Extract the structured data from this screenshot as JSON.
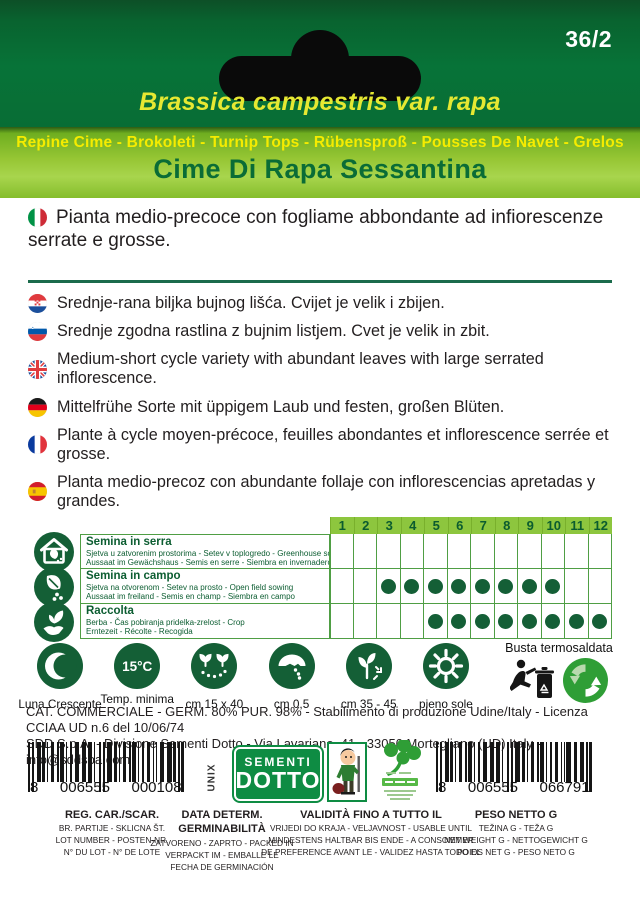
{
  "header": {
    "code": "36/2",
    "botanical_name": "Brassica campestris var. rapa",
    "common_names": "Repine Cime - Brokoleti - Turnip Tops - Rübensproß - Pousses De Navet - Grelos",
    "product_name": "Cime Di Rapa Sessantina"
  },
  "main_description": {
    "flag": "italy-flag",
    "text": "Pianta medio-precoce con fogliame abbondante ad infiorescenze serrate e grosse."
  },
  "translations": [
    {
      "flag": "croatia-flag",
      "text": "Srednje-rana biljka bujnog lišća. Cvijet je velik i zbijen."
    },
    {
      "flag": "slovenia-flag",
      "text": "Srednje zgodna rastlina z bujnim listjem. Cvet je velik in zbit."
    },
    {
      "flag": "uk-flag",
      "text": "Medium-short cycle variety with abundant leaves with large serrated inflorescence."
    },
    {
      "flag": "germany-flag",
      "text": "Mittelfrühe Sorte mit üppigem Laub und festen, großen Blüten."
    },
    {
      "flag": "france-flag",
      "text": "Plante à cycle moyen-précoce, feuilles abondantes et inflorescence serrée et grosse."
    },
    {
      "flag": "spain-flag",
      "text": "Planta medio-precoz con abundante follaje con inflorescencias apretadas y grandes."
    }
  ],
  "calendar": {
    "months": [
      "1",
      "2",
      "3",
      "4",
      "5",
      "6",
      "7",
      "8",
      "9",
      "10",
      "11",
      "12"
    ],
    "rows": [
      {
        "icon": "greenhouse-icon",
        "title": "Semina in serra",
        "subtitle1": "Sjetva u zatvorenim prostorima - Setev v toplogredo - Greenhouse sowing",
        "subtitle2": "Aussaat im Gewächshaus - Semis en serre - Siembra en invernadero",
        "active_months": []
      },
      {
        "icon": "field-sowing-icon",
        "title": "Semina in campo",
        "subtitle1": "Sjetva na otvorenom - Setev na prosto - Open field sowing",
        "subtitle2": "Aussaat im freiland - Semis en champ - Siembra en campo",
        "active_months": [
          3,
          4,
          5,
          6,
          7,
          8,
          9,
          10
        ]
      },
      {
        "icon": "harvest-icon",
        "title": "Raccolta",
        "subtitle1": "Berba - Čas pobiranja pridelka-zrelost - Crop",
        "subtitle2": "Erntezeit - Récolte - Recogida",
        "active_months": [
          5,
          6,
          7,
          8,
          9,
          10,
          11,
          12
        ]
      }
    ]
  },
  "growing_icons": [
    {
      "icon": "crescent-moon-icon",
      "label": "Luna Crescente"
    },
    {
      "icon": "min-temperature-icon",
      "value": "15°C",
      "label": "Temp. minima"
    },
    {
      "icon": "plant-spacing-icon",
      "label": "cm 15 x 40"
    },
    {
      "icon": "seed-depth-icon",
      "label": "cm 0,5"
    },
    {
      "icon": "row-distance-icon",
      "label": "cm 35 - 45"
    },
    {
      "icon": "sun-icon",
      "label": "pieno sole"
    }
  ],
  "packaging": {
    "label": "Busta termosaldata"
  },
  "legal": {
    "line1": "CAT. COMMERCIALE - GERM. 80% PUR. 98% - Stabilimento di produzione Udine/Italy - Licenza CCIAA UD n.6 del 10/06/74",
    "line2": "SDD S.p.A. - Divisione Sementi Dotto - Via Lavariano, 41 - 33050 Mortegliano (UD) Italy - info@sddspa.com"
  },
  "barcodes": {
    "left": "8 006555 000108",
    "right": "8 006555 066791",
    "side_text": "UNIX"
  },
  "brand": {
    "name_line1": "SEMENTI",
    "name_line2": "DOTTO"
  },
  "info_table": {
    "columns": [
      {
        "title": "REG. CAR./SCAR.",
        "lines": [
          "BR. PARTIJE - SKLICNA ŠT.",
          "LOT NUMBER - POSTEN-NR.",
          "N° DU LOT - N° DE LOTE"
        ]
      },
      {
        "title": "DATA DETERM. GERMINABILITÀ",
        "lines": [
          "ZATVORENO - ZAPRTO - PACKED IN",
          "VERPACKT IM - EMBALLE LE",
          "FECHA DE GERMINACIÓN"
        ]
      },
      {
        "title": "VALIDITÀ FINO A TUTTO IL",
        "lines": [
          "VRIJEDI DO KRAJA - VELJAVNOST - USABLE UNTIL",
          "MINDESTENS HALTBAR BIS ENDE - A CONSOMMER",
          "DE PREFERENCE AVANT LE - VALIDEZ HASTA TODO EL"
        ]
      },
      {
        "title": "PESO NETTO G",
        "lines": [
          "TEŽINA G - TEŽA G",
          "NET WEIGHT G - NETTOGEWICHT G",
          "POIDS NET G - PESO NETO G"
        ]
      }
    ]
  },
  "colors": {
    "header_green": "#077338",
    "band_green": "#96c634",
    "accent_yellow": "#f5ec00",
    "title_green": "#0a6c36",
    "icon_green": "#145f36",
    "grid_green": "#4f9e44",
    "month_header_green": "#8dc63e",
    "logo_green": "#0e8c43",
    "green_dot": "#2f9e36"
  }
}
